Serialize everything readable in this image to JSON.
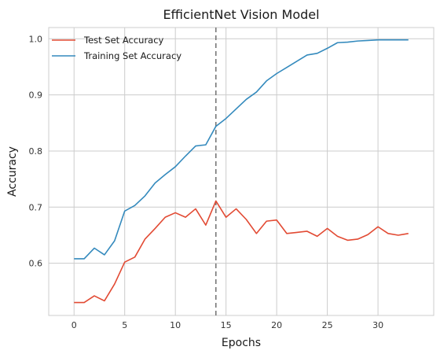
{
  "chart_data": {
    "type": "line",
    "title": "EfficientNet Vision Model",
    "xlabel": "Epochs",
    "ylabel": "Accuracy",
    "xlim": [
      -2.5,
      35.5
    ],
    "ylim": [
      0.507,
      1.02
    ],
    "xticks": [
      0,
      5,
      10,
      15,
      20,
      25,
      30
    ],
    "xtick_labels": [
      "0",
      "5",
      "10",
      "15",
      "20",
      "25",
      "30"
    ],
    "yticks": [
      0.6,
      0.7,
      0.8,
      0.9,
      1.0
    ],
    "ytick_labels": [
      "0.6",
      "0.7",
      "0.8",
      "0.9",
      "1.0"
    ],
    "grid": true,
    "legend_position": "top-left",
    "vline": {
      "x": 14,
      "color": "#777777",
      "style": "dashed"
    },
    "x": [
      0,
      1,
      2,
      3,
      4,
      5,
      6,
      7,
      8,
      9,
      10,
      11,
      12,
      13,
      14,
      15,
      16,
      17,
      18,
      19,
      20,
      21,
      22,
      23,
      24,
      25,
      26,
      27,
      28,
      29,
      30,
      31,
      32,
      33
    ],
    "series": [
      {
        "name": "Test Set Accuracy",
        "color": "#E24A33",
        "values": [
          0.53,
          0.53,
          0.542,
          0.533,
          0.563,
          0.602,
          0.611,
          0.643,
          0.662,
          0.682,
          0.69,
          0.682,
          0.697,
          0.668,
          0.711,
          0.682,
          0.697,
          0.678,
          0.653,
          0.675,
          0.677,
          0.653,
          0.655,
          0.657,
          0.648,
          0.662,
          0.648,
          0.641,
          0.643,
          0.651,
          0.665,
          0.653,
          0.65,
          0.653
        ]
      },
      {
        "name": "Training Set Accuracy",
        "color": "#348ABD",
        "values": [
          0.608,
          0.608,
          0.627,
          0.615,
          0.64,
          0.693,
          0.703,
          0.72,
          0.743,
          0.758,
          0.772,
          0.791,
          0.809,
          0.811,
          0.844,
          0.858,
          0.875,
          0.892,
          0.905,
          0.925,
          0.938,
          0.949,
          0.96,
          0.971,
          0.974,
          0.983,
          0.993,
          0.994,
          0.996,
          0.997,
          0.998,
          0.998,
          0.998,
          0.998
        ]
      }
    ]
  }
}
